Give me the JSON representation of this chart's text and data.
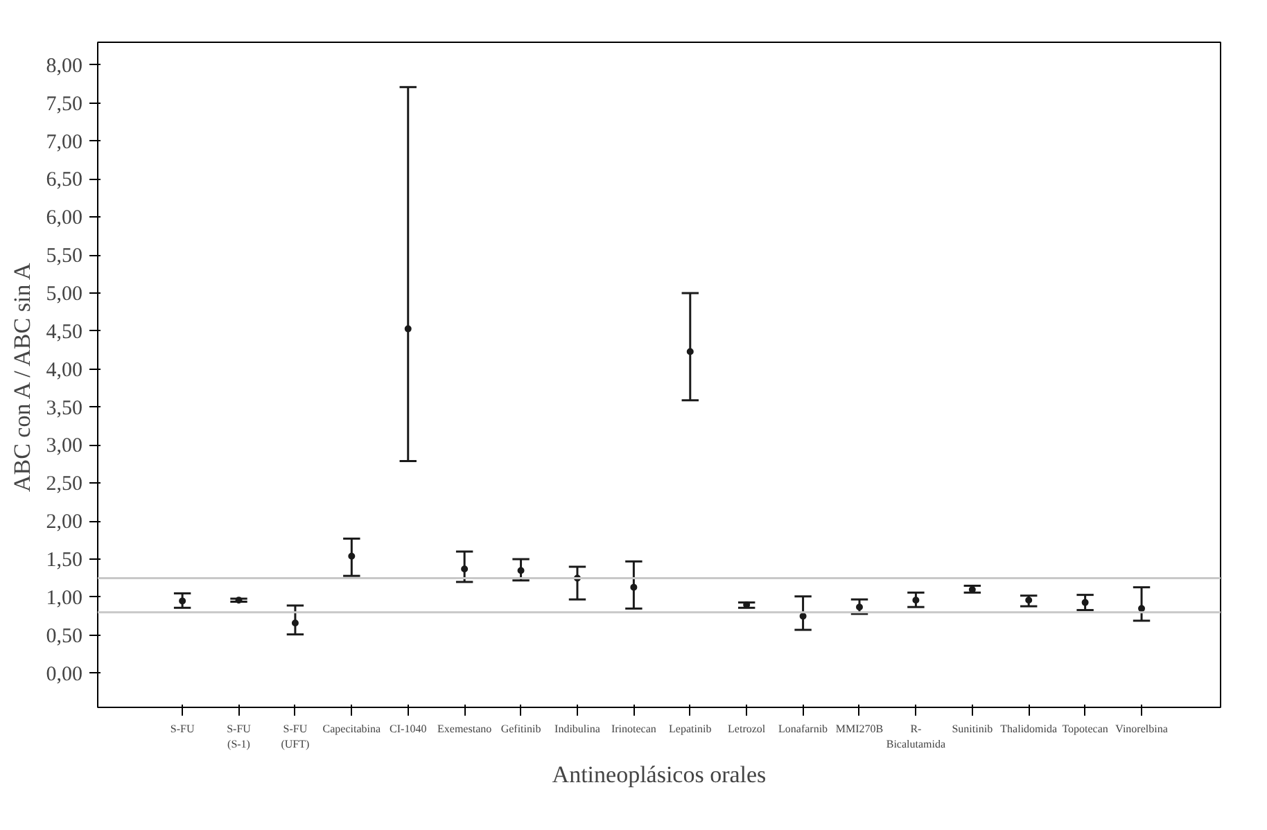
{
  "chart_data": {
    "type": "scatter",
    "xlabel": "Antineoplásicos orales",
    "ylabel": "ABC con A / ABC sin A",
    "categories": [
      "S-FU",
      "S-FU\n(S-1)",
      "S-FU\n(UFT)",
      "Capecitabina",
      "CI-1040",
      "Exemestano",
      "Gefitinib",
      "Indibulina",
      "Irinotecan",
      "Lepatinib",
      "Letrozol",
      "Lonafarnib",
      "MMI270B",
      "R-\nBicalutamida",
      "Sunitinib",
      "Thalidomida",
      "Topotecan",
      "Vinorelbina"
    ],
    "values": [
      0.95,
      0.96,
      0.66,
      1.54,
      4.53,
      1.37,
      1.35,
      1.25,
      1.13,
      4.23,
      0.9,
      0.75,
      0.87,
      0.96,
      1.1,
      0.96,
      0.93,
      0.85
    ],
    "errors": [
      [
        0.86,
        1.05
      ],
      [
        0.94,
        0.98
      ],
      [
        0.51,
        0.89
      ],
      [
        1.28,
        1.77
      ],
      [
        2.79,
        7.71
      ],
      [
        1.2,
        1.6
      ],
      [
        1.22,
        1.5
      ],
      [
        0.97,
        1.4
      ],
      [
        0.85,
        1.47
      ],
      [
        3.59,
        5.0
      ],
      [
        0.86,
        0.93
      ],
      [
        0.57,
        1.01
      ],
      [
        0.78,
        0.97
      ],
      [
        0.87,
        1.06
      ],
      [
        1.06,
        1.15
      ],
      [
        0.88,
        1.02
      ],
      [
        0.83,
        1.03
      ],
      [
        0.69,
        1.13
      ]
    ],
    "color": "#1a1a1a",
    "marker": "circle",
    "ylim": [
      -0.45,
      8.3
    ],
    "yticks": [
      {
        "value": 0,
        "label": "0,00"
      },
      {
        "value": 0.5,
        "label": "0,50"
      },
      {
        "value": 1,
        "label": "1,00"
      },
      {
        "value": 1.5,
        "label": "1,50"
      },
      {
        "value": 2,
        "label": "2,00"
      },
      {
        "value": 2.5,
        "label": "2,50"
      },
      {
        "value": 3,
        "label": "3,00"
      },
      {
        "value": 3.5,
        "label": "3,50"
      },
      {
        "value": 4,
        "label": "4,00"
      },
      {
        "value": 4.5,
        "label": "4,50"
      },
      {
        "value": 5,
        "label": "5,00"
      },
      {
        "value": 5.5,
        "label": "5,50"
      },
      {
        "value": 6,
        "label": "6,00"
      },
      {
        "value": 6.5,
        "label": "6,50"
      },
      {
        "value": 7,
        "label": "7,00"
      },
      {
        "value": 7.5,
        "label": "7,50"
      },
      {
        "value": 8,
        "label": "8,00"
      }
    ],
    "ref_lines": [
      {
        "axis": "y",
        "value": 1.25,
        "color": "#c8c8c8"
      },
      {
        "axis": "y",
        "value": 0.8,
        "color": "#c8c8c8"
      }
    ],
    "grid": false
  }
}
